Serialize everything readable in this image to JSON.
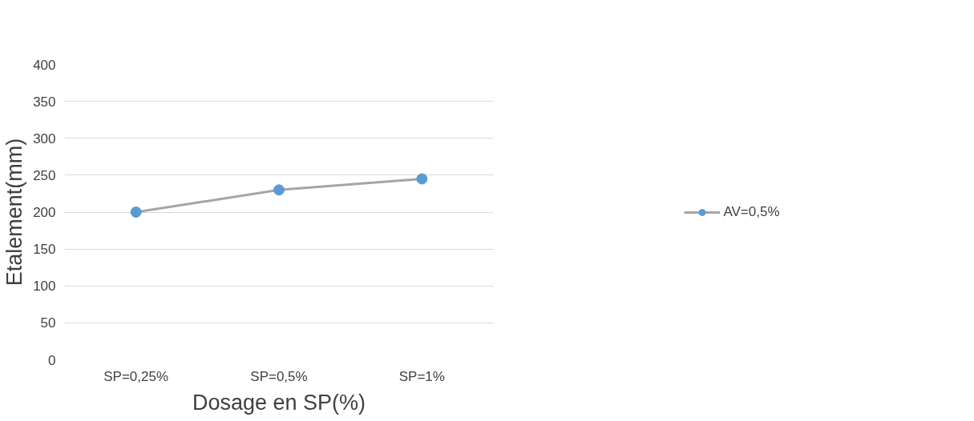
{
  "chart_data": {
    "type": "line",
    "xlabel": "Dosage en SP(%)",
    "ylabel": "Etalement(mm)",
    "categories": [
      "SP=0,25%",
      "SP=0,5%",
      "SP=1%"
    ],
    "series": [
      {
        "name": "AV=0,5%",
        "color": "#a5a5a5",
        "colors": [
          "#5b9bd5",
          "#5b9bd5",
          "#5b9bd5"
        ],
        "values": [
          200,
          230,
          245
        ]
      }
    ],
    "ylim": [
      0,
      400
    ],
    "yticks": [
      0,
      50,
      100,
      150,
      200,
      250,
      300,
      350,
      400
    ],
    "grid": "y",
    "legend": "right",
    "marker": "circle",
    "line_style": "solid"
  }
}
